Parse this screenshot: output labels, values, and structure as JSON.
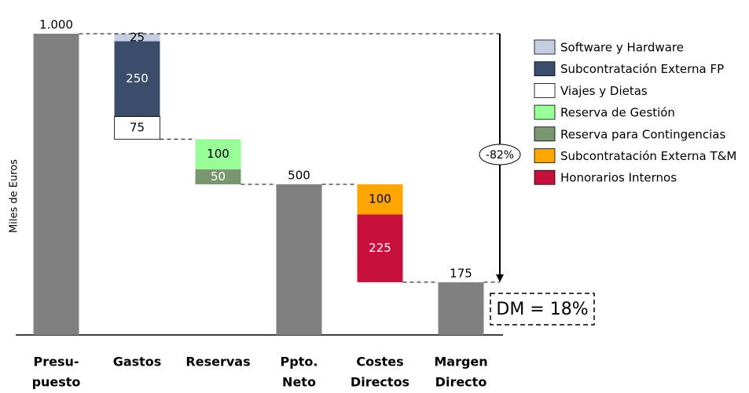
{
  "chart_data": {
    "type": "waterfall",
    "y_label": "Miles de Euros",
    "categories": [
      [
        "Presu-",
        "puesto"
      ],
      [
        "Gastos"
      ],
      [
        "Reservas"
      ],
      [
        "Ppto.",
        "Neto"
      ],
      [
        "Costes",
        "Directos"
      ],
      [
        "Margen",
        "Directo"
      ]
    ],
    "totals": {
      "color": "#808080",
      "values": [
        1000,
        null,
        null,
        500,
        null,
        175
      ],
      "value_labels": [
        "1.000",
        null,
        null,
        "500",
        null,
        "175"
      ]
    },
    "series": [
      {
        "name": "Software y Hardware",
        "color": "#c5cde0",
        "values": [
          null,
          25,
          null,
          null,
          null,
          null
        ]
      },
      {
        "name": "Subcontratación Externa FP",
        "color": "#3b4d6b",
        "values": [
          null,
          250,
          null,
          null,
          null,
          null
        ]
      },
      {
        "name": "Viajes y Dietas",
        "color": "#ffffff",
        "values": [
          null,
          75,
          null,
          null,
          null,
          null
        ]
      },
      {
        "name": "Reserva de Gestión",
        "color": "#99ff99",
        "values": [
          null,
          null,
          100,
          null,
          null,
          null
        ]
      },
      {
        "name": "Reserva para Contingencias",
        "color": "#7a9670",
        "values": [
          null,
          null,
          50,
          null,
          null,
          null
        ]
      },
      {
        "name": "Subcontratación Externa T&M",
        "color": "#ffa500",
        "values": [
          null,
          null,
          null,
          null,
          100,
          null
        ]
      },
      {
        "name": "Honorarios Internos",
        "color": "#c8103c",
        "values": [
          null,
          null,
          null,
          null,
          225,
          null
        ]
      }
    ],
    "ylim": [
      0,
      1000
    ],
    "annotations": {
      "change": "-82%",
      "margin": "DM = 18%"
    }
  }
}
